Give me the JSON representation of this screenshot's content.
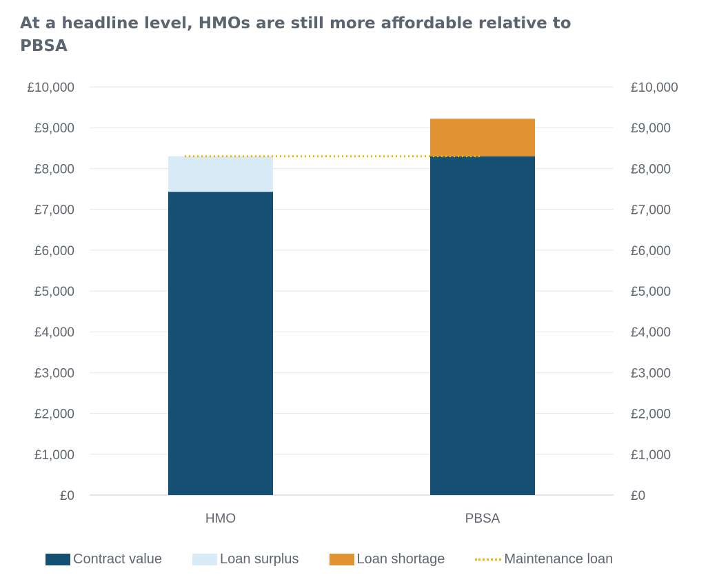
{
  "title": "At a headline level, HMOs are still more affordable relative to PBSA",
  "colors": {
    "contract_value": "#154f73",
    "loan_surplus": "#d9ebf6",
    "loan_shortage": "#e39232",
    "maintenance_loan": "#f0b400",
    "grid": "#e3e6ea",
    "axis": "#c8ccd1"
  },
  "chart_data": {
    "type": "bar",
    "stacked": true,
    "categories": [
      "HMO",
      "PBSA"
    ],
    "series": [
      {
        "name": "Contract value",
        "values": [
          7430,
          8300
        ]
      },
      {
        "name": "Loan surplus",
        "values": [
          870,
          0
        ]
      },
      {
        "name": "Loan shortage",
        "values": [
          0,
          920
        ]
      }
    ],
    "line": {
      "name": "Maintenance loan",
      "value": 8300,
      "style": "dotted"
    },
    "ylim": [
      0,
      10000
    ],
    "yticks": [
      "£0",
      "£1,000",
      "£2,000",
      "£3,000",
      "£4,000",
      "£5,000",
      "£6,000",
      "£7,000",
      "£8,000",
      "£9,000",
      "£10,000"
    ],
    "secondary_axis": true,
    "grid": true,
    "legend_position": "bottom"
  },
  "legend": [
    {
      "label": "Contract value",
      "kind": "box",
      "color_key": "contract_value"
    },
    {
      "label": "Loan surplus",
      "kind": "box",
      "color_key": "loan_surplus"
    },
    {
      "label": "Loan shortage",
      "kind": "box",
      "color_key": "loan_shortage"
    },
    {
      "label": "Maintenance loan",
      "kind": "dotted",
      "color_key": "maintenance_loan"
    }
  ]
}
